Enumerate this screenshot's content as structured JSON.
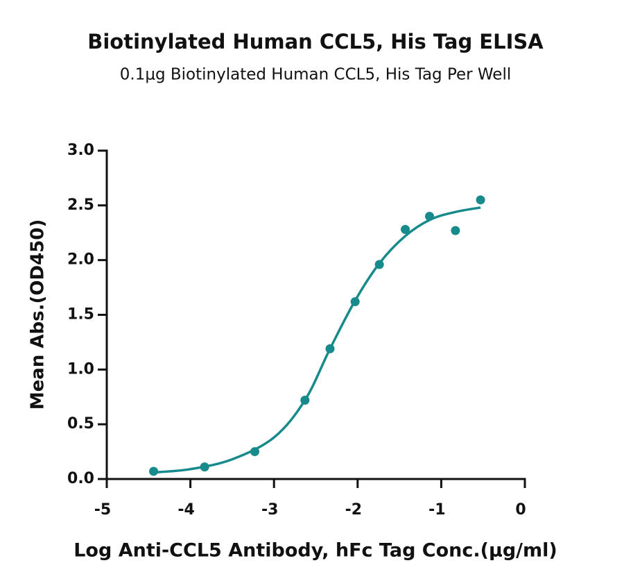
{
  "chart_data": {
    "type": "scatter",
    "title": "Biotinylated Human CCL5, His Tag ELISA",
    "subtitle": "0.1μg Biotinylated Human CCL5, His Tag Per Well",
    "xlabel": "Log Anti-CCL5 Antibody, hFc Tag Conc.(μg/ml)",
    "ylabel": "Mean Abs.(OD450)",
    "color": "#178a8c",
    "points": {
      "x": [
        -4.44,
        -3.83,
        -3.23,
        -2.63,
        -2.33,
        -2.03,
        -1.74,
        -1.43,
        -1.14,
        -0.83,
        -0.53
      ],
      "values": [
        0.07,
        0.11,
        0.25,
        0.72,
        1.19,
        1.62,
        1.96,
        2.28,
        2.4,
        2.27,
        2.55
      ]
    },
    "fit": {
      "x": [
        -4.44,
        -4.0,
        -3.5,
        -3.0,
        -2.63,
        -2.33,
        -2.03,
        -1.74,
        -1.43,
        -1.13,
        -0.83,
        -0.53
      ],
      "values": [
        0.06,
        0.09,
        0.18,
        0.38,
        0.72,
        1.19,
        1.63,
        1.97,
        2.22,
        2.37,
        2.44,
        2.48
      ]
    },
    "xlim": [
      -5,
      0
    ],
    "xticks": [
      -5,
      -4,
      -3,
      -2,
      -1,
      0
    ],
    "ylim": [
      0,
      3
    ],
    "yticks": [
      {
        "value": 0,
        "label": "0.0"
      },
      0.5,
      {
        "value": 1,
        "label": "1.0"
      },
      1.5,
      {
        "value": 2,
        "label": "2.0"
      },
      2.5,
      {
        "value": 3,
        "label": "3.0"
      }
    ]
  }
}
